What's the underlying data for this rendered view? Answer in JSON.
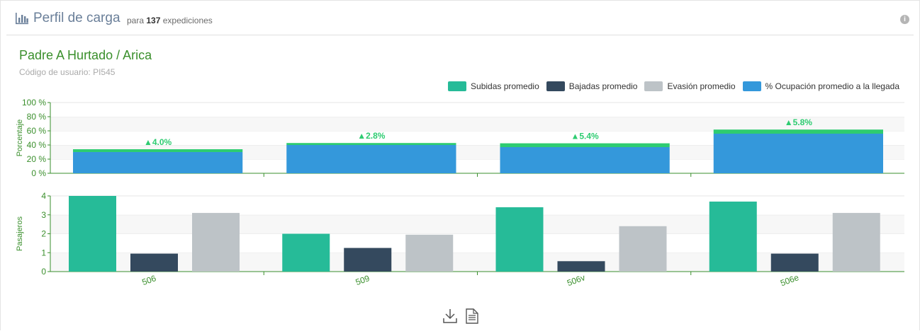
{
  "header": {
    "title": "Perfil de carga",
    "subtitle_prefix": "para",
    "subtitle_count": "137",
    "subtitle_suffix": "expediciones"
  },
  "stop": {
    "name": "Padre A Hurtado / Arica",
    "user_code": "Código de usuario: PI545"
  },
  "colors": {
    "subidas": "#26bb98",
    "bajadas": "#34495e",
    "evasion": "#bdc3c7",
    "ocupacion": "#3498db",
    "delta": "#2ecc71",
    "axis": "#3a8f2c"
  },
  "chart_data": [
    {
      "type": "bar",
      "ylabel": "Porcentaje",
      "ylim": [
        0,
        100
      ],
      "yticks": [
        "0 %",
        "20 %",
        "40 %",
        "60 %",
        "80 %",
        "100 %"
      ],
      "categories": [
        "506",
        "509",
        "506v",
        "506e"
      ],
      "series": [
        {
          "name": "% Ocupación promedio a la llegada",
          "values": [
            30,
            40,
            37,
            56
          ]
        },
        {
          "name": "",
          "values": [
            4.0,
            2.8,
            5.4,
            5.8
          ]
        }
      ],
      "annotations": [
        "▲4.0%",
        "▲2.8%",
        "▲5.4%",
        "▲5.8%"
      ],
      "grid": true,
      "legend": "top-right"
    },
    {
      "type": "bar",
      "ylabel": "Pasajeros",
      "ylim": [
        0,
        4
      ],
      "yticks": [
        "0",
        "1",
        "2",
        "3",
        "4"
      ],
      "categories": [
        "506",
        "509",
        "506v",
        "506e"
      ],
      "series": [
        {
          "name": "Subidas promedio",
          "values": [
            4.0,
            2.0,
            3.4,
            3.7
          ]
        },
        {
          "name": "Bajadas promedio",
          "values": [
            0.95,
            1.25,
            0.55,
            0.95
          ]
        },
        {
          "name": "Evasión promedio",
          "values": [
            3.1,
            1.95,
            2.4,
            3.1
          ]
        }
      ],
      "grid": true,
      "legend": "top-right"
    }
  ],
  "legend": [
    {
      "label": "Subidas promedio",
      "color": "#26bb98"
    },
    {
      "label": "Bajadas promedio",
      "color": "#34495e"
    },
    {
      "label": "Evasión promedio",
      "color": "#bdc3c7"
    },
    {
      "label": "% Ocupación promedio a la llegada",
      "color": "#3498db"
    }
  ],
  "icons": {
    "title": "bar-chart-icon",
    "info": "info-icon",
    "download": "download-icon",
    "document": "document-icon"
  }
}
